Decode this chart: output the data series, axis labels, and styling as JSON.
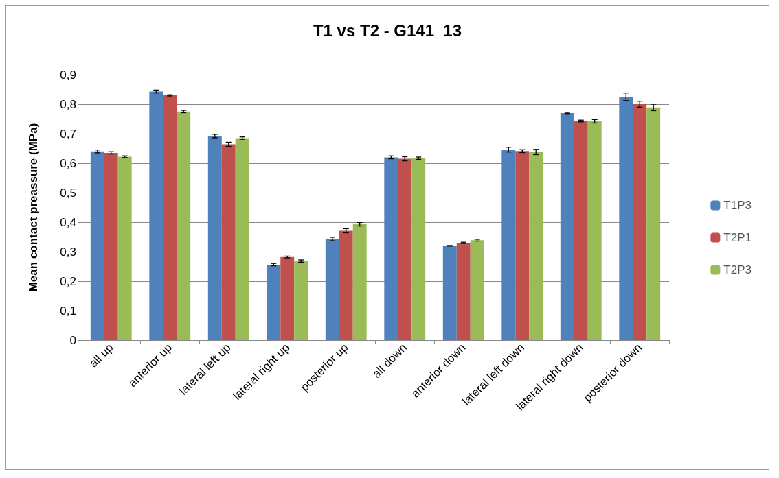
{
  "chart_data": {
    "type": "bar",
    "title": "T1 vs T2 - G141_13",
    "ylabel": "Mean contact preassure (MPa)",
    "categories": [
      "all up",
      "anterior up",
      "lateral left up",
      "lateral right up",
      "posterior up",
      "all down",
      "anterior down",
      "lateral left down",
      "lateral right down",
      "posterior down"
    ],
    "series": [
      {
        "name": "T1P3",
        "color": "#4f81bd",
        "values": [
          0.64,
          0.843,
          0.692,
          0.256,
          0.343,
          0.62,
          0.32,
          0.646,
          0.77,
          0.825
        ],
        "errors": [
          0.005,
          0.005,
          0.006,
          0.004,
          0.006,
          0.005,
          0.001,
          0.008,
          0.002,
          0.013
        ]
      },
      {
        "name": "T2P1",
        "color": "#c0504d",
        "values": [
          0.635,
          0.83,
          0.664,
          0.282,
          0.371,
          0.615,
          0.33,
          0.641,
          0.743,
          0.8
        ],
        "errors": [
          0.004,
          0.002,
          0.007,
          0.003,
          0.007,
          0.007,
          0.002,
          0.005,
          0.003,
          0.01
        ]
      },
      {
        "name": "T2P3",
        "color": "#9bbb59",
        "values": [
          0.622,
          0.775,
          0.685,
          0.268,
          0.393,
          0.617,
          0.339,
          0.638,
          0.742,
          0.789
        ],
        "errors": [
          0.003,
          0.004,
          0.004,
          0.004,
          0.006,
          0.004,
          0.003,
          0.009,
          0.006,
          0.011
        ]
      }
    ],
    "ylim": [
      0,
      0.9
    ],
    "yticks": [
      0,
      {
        "value": 0.1,
        "label": "0,1"
      },
      {
        "value": 0.2,
        "label": "0,2"
      },
      {
        "value": 0.3,
        "label": "0,3"
      },
      {
        "value": 0.4,
        "label": "0,4"
      },
      {
        "value": 0.5,
        "label": "0,5"
      },
      {
        "value": 0.6,
        "label": "0,6"
      },
      {
        "value": 0.7,
        "label": "0,7"
      },
      {
        "value": 0.8,
        "label": "0,8"
      },
      {
        "value": 0.9,
        "label": "0,9"
      }
    ],
    "grid": "y",
    "legend": "right"
  }
}
